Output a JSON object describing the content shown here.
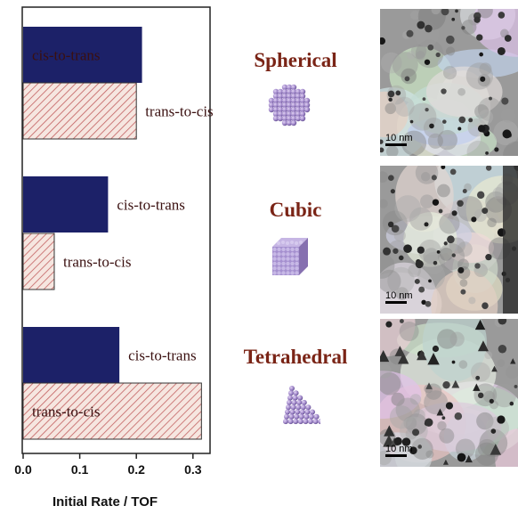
{
  "chart_data": {
    "type": "bar",
    "orientation": "horizontal",
    "xlabel": "Initial Rate / TOF",
    "xlim": [
      0.0,
      0.35
    ],
    "xticks": [
      "0.0",
      "0.1",
      "0.2",
      "0.3"
    ],
    "groups": [
      {
        "shape": "Spherical",
        "bars": [
          {
            "label": "cis-to-trans",
            "value": 0.21
          },
          {
            "label": "trans-to-cis",
            "value": 0.2
          }
        ]
      },
      {
        "shape": "Cubic",
        "bars": [
          {
            "label": "cis-to-trans",
            "value": 0.15
          },
          {
            "label": "trans-to-cis",
            "value": 0.055
          }
        ]
      },
      {
        "shape": "Tetrahedral",
        "bars": [
          {
            "label": "cis-to-trans",
            "value": 0.17
          },
          {
            "label": "trans-to-cis",
            "value": 0.315
          }
        ]
      }
    ],
    "colors": {
      "cis-to-trans": "#1c2168",
      "trans-to-cis": "#f6e6e0",
      "hatch": "#c26060"
    }
  },
  "shapes": [
    {
      "name": "Spherical",
      "icon": "sphere-nanoparticle-icon"
    },
    {
      "name": "Cubic",
      "icon": "cube-nanoparticle-icon"
    },
    {
      "name": "Tetrahedral",
      "icon": "tetrahedron-nanoparticle-icon"
    }
  ],
  "tem_images": [
    {
      "scale_label": "10 nm"
    },
    {
      "scale_label": "10 nm"
    },
    {
      "scale_label": "10 nm"
    }
  ]
}
